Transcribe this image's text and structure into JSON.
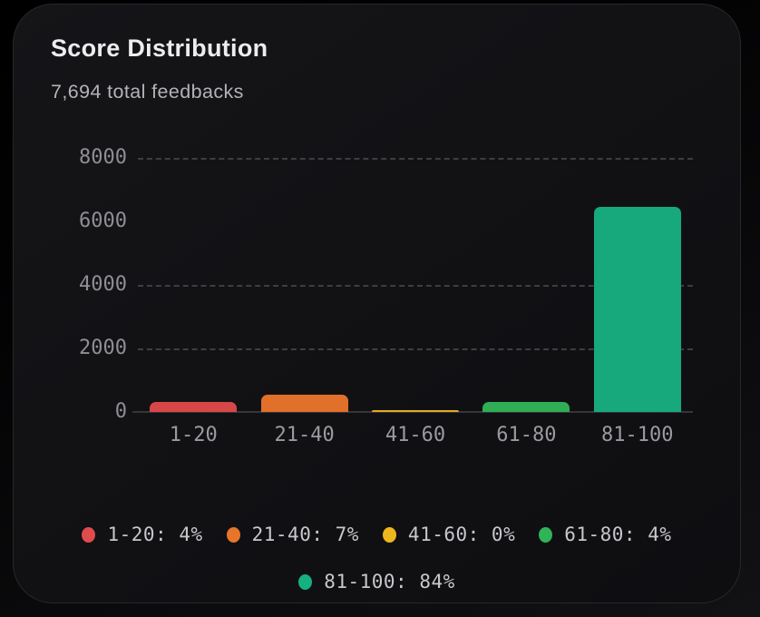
{
  "card": {
    "title": "Score Distribution",
    "subtitle": "7,694 total feedbacks"
  },
  "chart_data": {
    "type": "bar",
    "title": "Score Distribution",
    "subtitle": "7,694 total feedbacks",
    "total_feedbacks": 7694,
    "categories": [
      "1-20",
      "21-40",
      "41-60",
      "61-80",
      "81-100"
    ],
    "values": [
      308,
      538,
      23,
      308,
      6463
    ],
    "percentages": [
      4,
      7,
      0,
      4,
      84
    ],
    "bar_colors": [
      "#d84747",
      "#e1702a",
      "#e2ab1e",
      "#2fae55",
      "#17a97b"
    ],
    "xlabel": "",
    "ylabel": "",
    "ylim": [
      0,
      8000
    ],
    "y_ticks": [
      0,
      2000,
      4000,
      6000,
      8000
    ],
    "grid_ticks": [
      2000,
      4000,
      8000
    ],
    "grid_style": "dashed",
    "legend_position": "bottom",
    "legend": [
      {
        "label": "1-20: 4%",
        "color": "#e04b4b"
      },
      {
        "label": "21-40: 7%",
        "color": "#e8762a"
      },
      {
        "label": "41-60: 0%",
        "color": "#ecb71e"
      },
      {
        "label": "61-80: 4%",
        "color": "#2fb457"
      },
      {
        "label": "81-100: 84%",
        "color": "#17b081"
      }
    ],
    "legend_rows": [
      [
        0,
        1,
        2,
        3
      ],
      [
        4
      ]
    ]
  },
  "colors": {
    "page_background": "#060608",
    "card_background": "#121215",
    "card_border": "#27272b",
    "title_text": "#edecef",
    "subtitle_text": "#b3b2b8",
    "axis_label_text": "#93939b",
    "legend_text": "#c7c7cc",
    "gridline": "#3d3d43",
    "axis_line": "#35353a"
  }
}
